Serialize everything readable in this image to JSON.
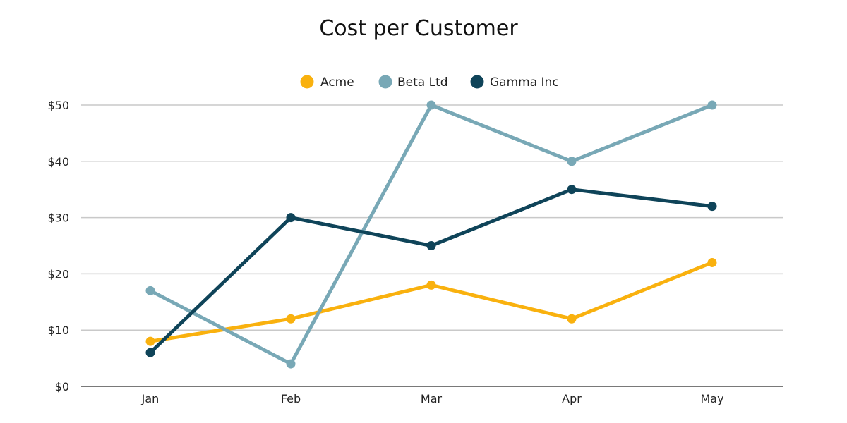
{
  "chart_data": {
    "type": "line",
    "title": "Cost per Customer",
    "xlabel": "",
    "ylabel": "",
    "categories": [
      "Jan",
      "Feb",
      "Mar",
      "Apr",
      "May"
    ],
    "ylim": [
      0,
      50
    ],
    "yticks": [
      0,
      10,
      20,
      30,
      40,
      50
    ],
    "y_tick_labels": [
      "$0",
      "$10",
      "$20",
      "$30",
      "$40",
      "$50"
    ],
    "legend": "top-center",
    "grid": true,
    "series": [
      {
        "name": "Acme",
        "color": "#F9B10E",
        "values": [
          8,
          12,
          18,
          12,
          22
        ]
      },
      {
        "name": "Beta Ltd",
        "color": "#78A8B6",
        "values": [
          17,
          4,
          50,
          40,
          50
        ]
      },
      {
        "name": "Gamma Inc",
        "color": "#0F4459",
        "values": [
          6,
          30,
          25,
          35,
          32
        ]
      }
    ]
  }
}
